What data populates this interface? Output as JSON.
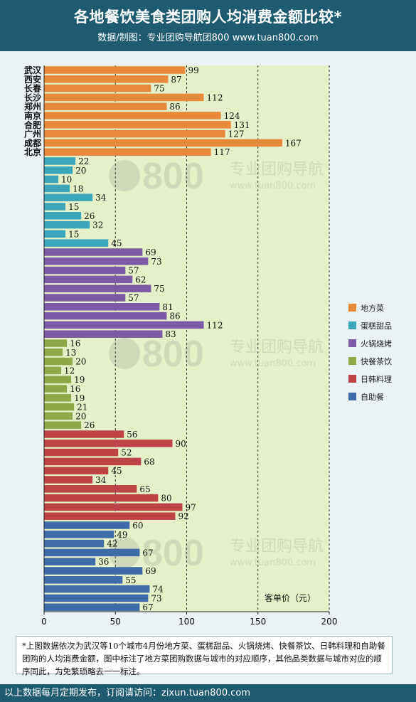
{
  "header": {
    "title": "各地餐饮美食类团购人均消费金额比较*",
    "subtitle": "数据/制图：专业团购导航团800    www.tuan800.com"
  },
  "chart_data": {
    "type": "bar",
    "orientation": "horizontal",
    "categories": [
      "武汉",
      "西安",
      "长春",
      "长沙",
      "郑州",
      "南京",
      "合肥",
      "广州",
      "成都",
      "北京"
    ],
    "series": [
      {
        "name": "地方菜",
        "color": "#e8883a",
        "values": [
          99,
          87,
          75,
          112,
          86,
          124,
          131,
          127,
          167,
          117
        ]
      },
      {
        "name": "蛋糕甜品",
        "color": "#3aa6b8",
        "values": [
          22,
          20,
          10,
          18,
          34,
          15,
          26,
          32,
          15,
          45
        ]
      },
      {
        "name": "火锅烧烤",
        "color": "#7c5aa6",
        "values": [
          69,
          73,
          57,
          62,
          75,
          57,
          81,
          86,
          112,
          83
        ]
      },
      {
        "name": "快餐茶饮",
        "color": "#8eaa48",
        "values": [
          16,
          13,
          20,
          12,
          19,
          16,
          19,
          21,
          20,
          26
        ]
      },
      {
        "name": "日韩料理",
        "color": "#bf4346",
        "values": [
          56,
          90,
          52,
          68,
          45,
          34,
          65,
          80,
          97,
          92
        ]
      },
      {
        "name": "自助餐",
        "color": "#3f6ba8",
        "values": [
          60,
          49,
          42,
          67,
          36,
          69,
          55,
          74,
          73,
          67
        ]
      }
    ],
    "xlim": [
      0,
      200
    ],
    "xticks": [
      0,
      50,
      100,
      150,
      200
    ],
    "xlabel": "客单价（元）",
    "grid": true,
    "legend": "right"
  },
  "watermark": {
    "number": "800",
    "cn": "专业团购导航",
    "url": "www.tuan800.com"
  },
  "note": "*上图数据依次为武汉等10个城市4月份地方菜、蛋糕甜品、火锅烧烤、快餐茶饮、日韩料理和自助餐团购的人均消费金额，图中标注了地方菜团购数据与城市的对应顺序，其他品类数据与城市对应的顺序同此，为免繁琐略去一一标注。",
  "footer": "以上数据每月定期发布，订阅请访问：zixun.tuan800.com"
}
